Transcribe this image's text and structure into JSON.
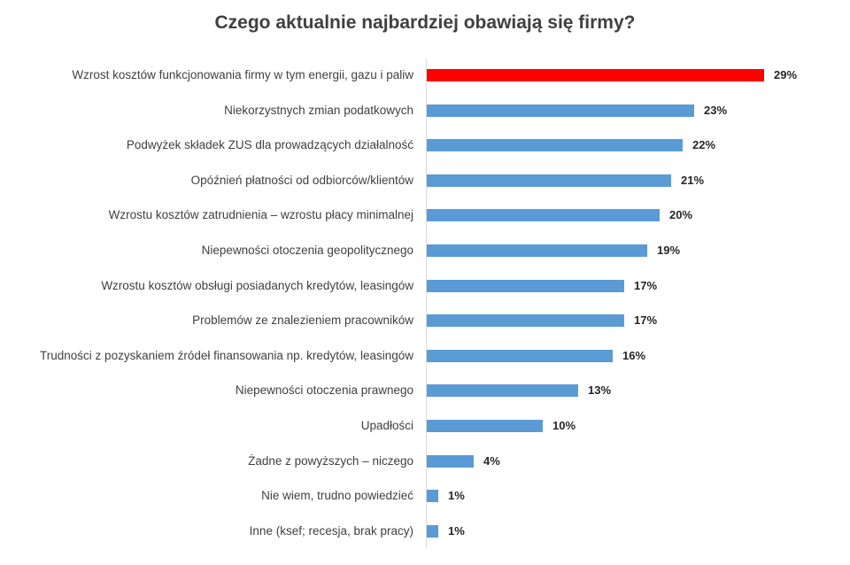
{
  "chart_data": {
    "type": "bar",
    "orientation": "horizontal",
    "title": "Czego aktualnie najbardziej obawiają się firmy?",
    "xlabel": "",
    "ylabel": "",
    "grid": false,
    "legend": null,
    "unit": "%",
    "highlight_color": "#ff0000",
    "bar_color": "#5b9bd5",
    "categories": [
      "Wzrost kosztów funkcjonowania firmy w tym energii, gazu i paliw",
      "Niekorzystnych zmian podatkowych",
      "Podwyżek składek ZUS dla prowadzących działalność",
      "Opóźnień płatności od odbiorców/klientów",
      "Wzrostu kosztów zatrudnienia – wzrostu płacy minimalnej",
      "Niepewności otoczenia geopolitycznego",
      "Wzrostu kosztów obsługi posiadanych kredytów, leasingów",
      "Problemów ze znalezieniem pracowników",
      "Trudności z pozyskaniem źródeł finansowania np. kredytów, leasingów",
      "Niepewności otoczenia prawnego",
      "Upadłości",
      "Żadne z powyższych – niczego",
      "Nie wiem, trudno powiedzieć",
      "Inne (ksef; recesja, brak pracy)"
    ],
    "values": [
      29,
      23,
      22,
      21,
      20,
      19,
      17,
      17,
      16,
      13,
      10,
      4,
      1,
      1
    ],
    "value_labels": [
      "29%",
      "23%",
      "22%",
      "21%",
      "20%",
      "19%",
      "17%",
      "17%",
      "16%",
      "13%",
      "10%",
      "4%",
      "1%",
      "1%"
    ],
    "highlighted_index": 0
  }
}
